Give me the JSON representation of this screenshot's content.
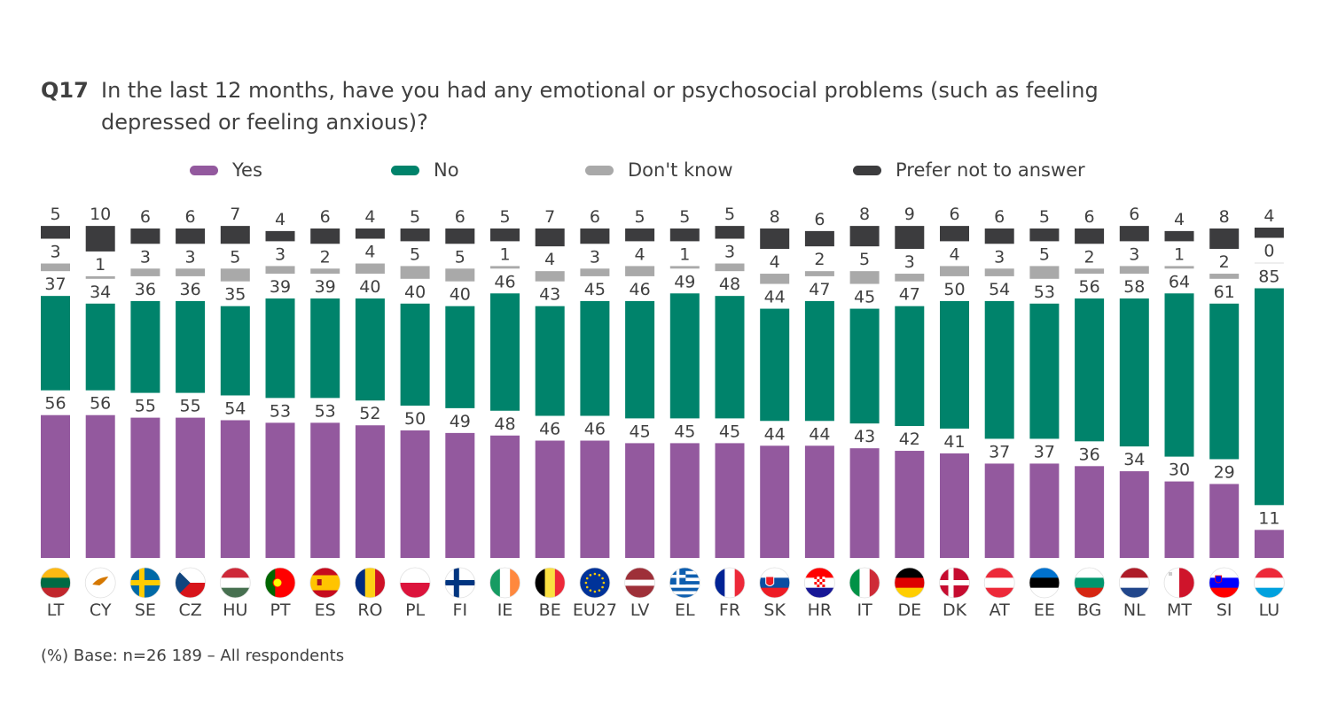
{
  "question": {
    "number": "Q17",
    "text": "In the last 12 months, have you had any emotional or psychosocial problems (such as feeling depressed or feeling anxious)?"
  },
  "footnote": "(%) Base: n=26 189 – All respondents",
  "colors": {
    "yes": "#93599e",
    "no": "#00836b",
    "dont_know": "#a9a9a9",
    "prefer_not": "#3c3c3e"
  },
  "chart_data": {
    "type": "bar",
    "stacked": true,
    "title": "Q17 In the last 12 months, have you had any emotional or psychosocial problems (such as feeling depressed or feeling anxious)?",
    "unit": "%",
    "legend_position": "top",
    "categories": [
      "LT",
      "CY",
      "SE",
      "CZ",
      "HU",
      "PT",
      "ES",
      "RO",
      "PL",
      "FI",
      "IE",
      "BE",
      "EU27",
      "LV",
      "EL",
      "FR",
      "SK",
      "HR",
      "IT",
      "DE",
      "DK",
      "AT",
      "EE",
      "BG",
      "NL",
      "MT",
      "SI",
      "LU"
    ],
    "series": [
      {
        "key": "yes",
        "name": "Yes",
        "values": [
          56,
          56,
          55,
          55,
          54,
          53,
          53,
          52,
          50,
          49,
          48,
          46,
          46,
          45,
          45,
          45,
          44,
          44,
          43,
          42,
          41,
          37,
          37,
          36,
          34,
          30,
          29,
          11
        ]
      },
      {
        "key": "no",
        "name": "No",
        "values": [
          37,
          34,
          36,
          36,
          35,
          39,
          39,
          40,
          40,
          40,
          46,
          43,
          45,
          46,
          49,
          48,
          44,
          47,
          45,
          47,
          50,
          54,
          53,
          56,
          58,
          64,
          61,
          85
        ]
      },
      {
        "key": "dont_know",
        "name": "Don't know",
        "values": [
          3,
          1,
          3,
          3,
          5,
          3,
          2,
          4,
          5,
          5,
          1,
          4,
          3,
          4,
          1,
          3,
          4,
          2,
          5,
          3,
          4,
          3,
          5,
          2,
          3,
          1,
          2,
          0
        ]
      },
      {
        "key": "prefer_not",
        "name": "Prefer not to answer",
        "values": [
          5,
          10,
          6,
          6,
          7,
          4,
          6,
          4,
          5,
          6,
          5,
          7,
          6,
          5,
          5,
          5,
          8,
          6,
          8,
          9,
          6,
          6,
          5,
          6,
          6,
          4,
          8,
          4
        ]
      }
    ],
    "flag_icons": [
      "lithuania-flag-icon",
      "cyprus-flag-icon",
      "sweden-flag-icon",
      "czechia-flag-icon",
      "hungary-flag-icon",
      "portugal-flag-icon",
      "spain-flag-icon",
      "romania-flag-icon",
      "poland-flag-icon",
      "finland-flag-icon",
      "ireland-flag-icon",
      "belgium-flag-icon",
      "eu-flag-icon",
      "latvia-flag-icon",
      "greece-flag-icon",
      "france-flag-icon",
      "slovakia-flag-icon",
      "croatia-flag-icon",
      "italy-flag-icon",
      "germany-flag-icon",
      "denmark-flag-icon",
      "austria-flag-icon",
      "estonia-flag-icon",
      "bulgaria-flag-icon",
      "netherlands-flag-icon",
      "malta-flag-icon",
      "slovenia-flag-icon",
      "luxembourg-flag-icon"
    ]
  }
}
